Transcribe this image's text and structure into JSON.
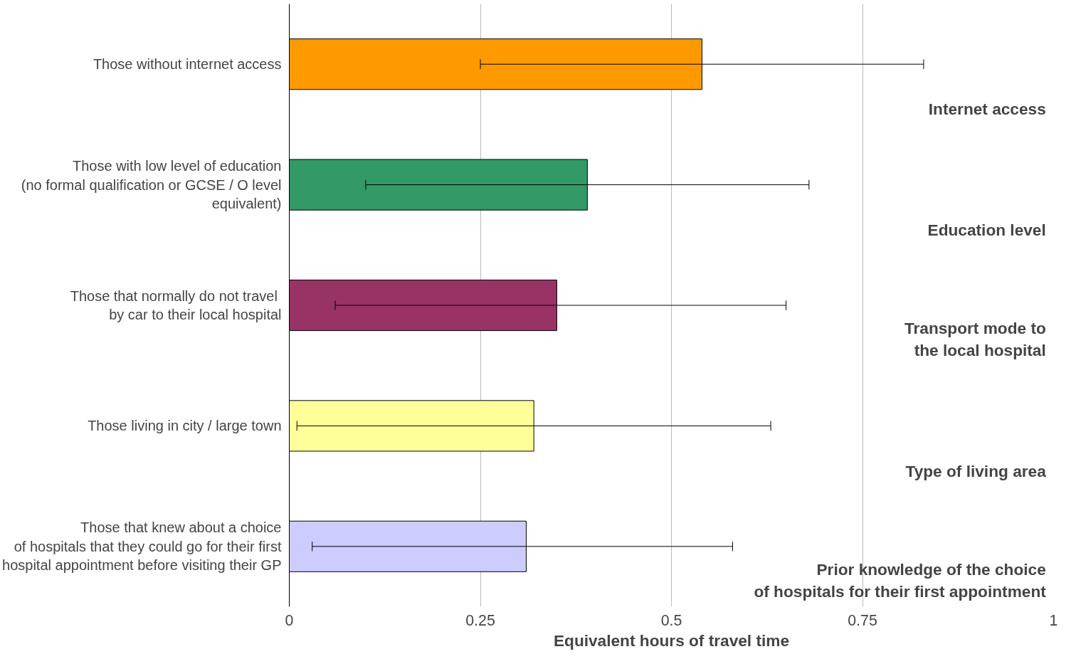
{
  "chart_data": {
    "type": "bar",
    "orientation": "horizontal",
    "xlabel": "Equivalent hours of travel time",
    "categories": [
      "Those without internet access",
      "Those with low level of education\n(no formal qualification or GCSE / O level\nequivalent)",
      "Those that normally  do not travel\nby car to their local hospital",
      "Those living in city / large town",
      "Those that knew about a choice\nof hospitals that they could go for their first\nhospital appointment before visiting their GP"
    ],
    "values": [
      0.54,
      0.39,
      0.35,
      0.32,
      0.31
    ],
    "colors": [
      "#ff9900",
      "#339966",
      "#993366",
      "#ffff99",
      "#ccccff"
    ],
    "errors": [
      [
        0.25,
        0.83
      ],
      [
        0.1,
        0.68
      ],
      [
        0.06,
        0.65
      ],
      [
        0.01,
        0.63
      ],
      [
        0.03,
        0.58
      ]
    ],
    "xlim": [
      0,
      1
    ],
    "xticks": [
      0,
      0.25,
      0.5,
      0.75,
      1
    ],
    "grid": "x",
    "annotations": [
      "Internet access",
      "Education level",
      "Transport mode to\nthe local hospital",
      "Type of living area",
      "Prior knowledge of the choice\nof hospitals for their first appointment"
    ]
  }
}
